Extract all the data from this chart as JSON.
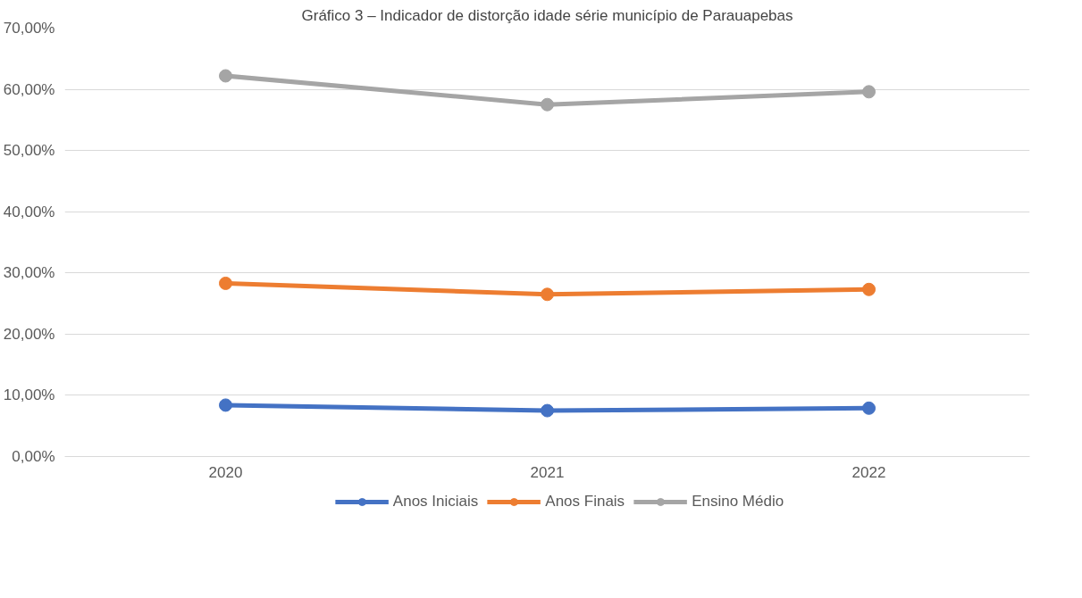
{
  "chart_data": {
    "type": "line",
    "title": "Gráfico 3 – Indicador de distorção idade série município de Parauapebas",
    "categories": [
      "2020",
      "2021",
      "2022"
    ],
    "series": [
      {
        "name": "Anos Iniciais",
        "color": "#4472c4",
        "values": [
          8.4,
          7.5,
          7.9
        ]
      },
      {
        "name": "Anos Finais",
        "color": "#ed7d31",
        "values": [
          28.3,
          26.5,
          27.3
        ]
      },
      {
        "name": "Ensino Médio",
        "color": "#a5a5a5",
        "values": [
          62.2,
          57.5,
          59.6
        ]
      }
    ],
    "ylim": [
      0,
      70
    ],
    "yticks": [
      {
        "value": 0,
        "label": "0,00%"
      },
      {
        "value": 10,
        "label": "10,00%"
      },
      {
        "value": 20,
        "label": "20,00%"
      },
      {
        "value": 30,
        "label": "30,00%"
      },
      {
        "value": 40,
        "label": "40,00%"
      },
      {
        "value": 50,
        "label": "50,00%"
      },
      {
        "value": 60,
        "label": "60,00%"
      },
      {
        "value": 70,
        "label": "70,00%"
      }
    ],
    "grid": "y",
    "legend": "bottom",
    "marker": "circle",
    "line_style": "solid"
  }
}
